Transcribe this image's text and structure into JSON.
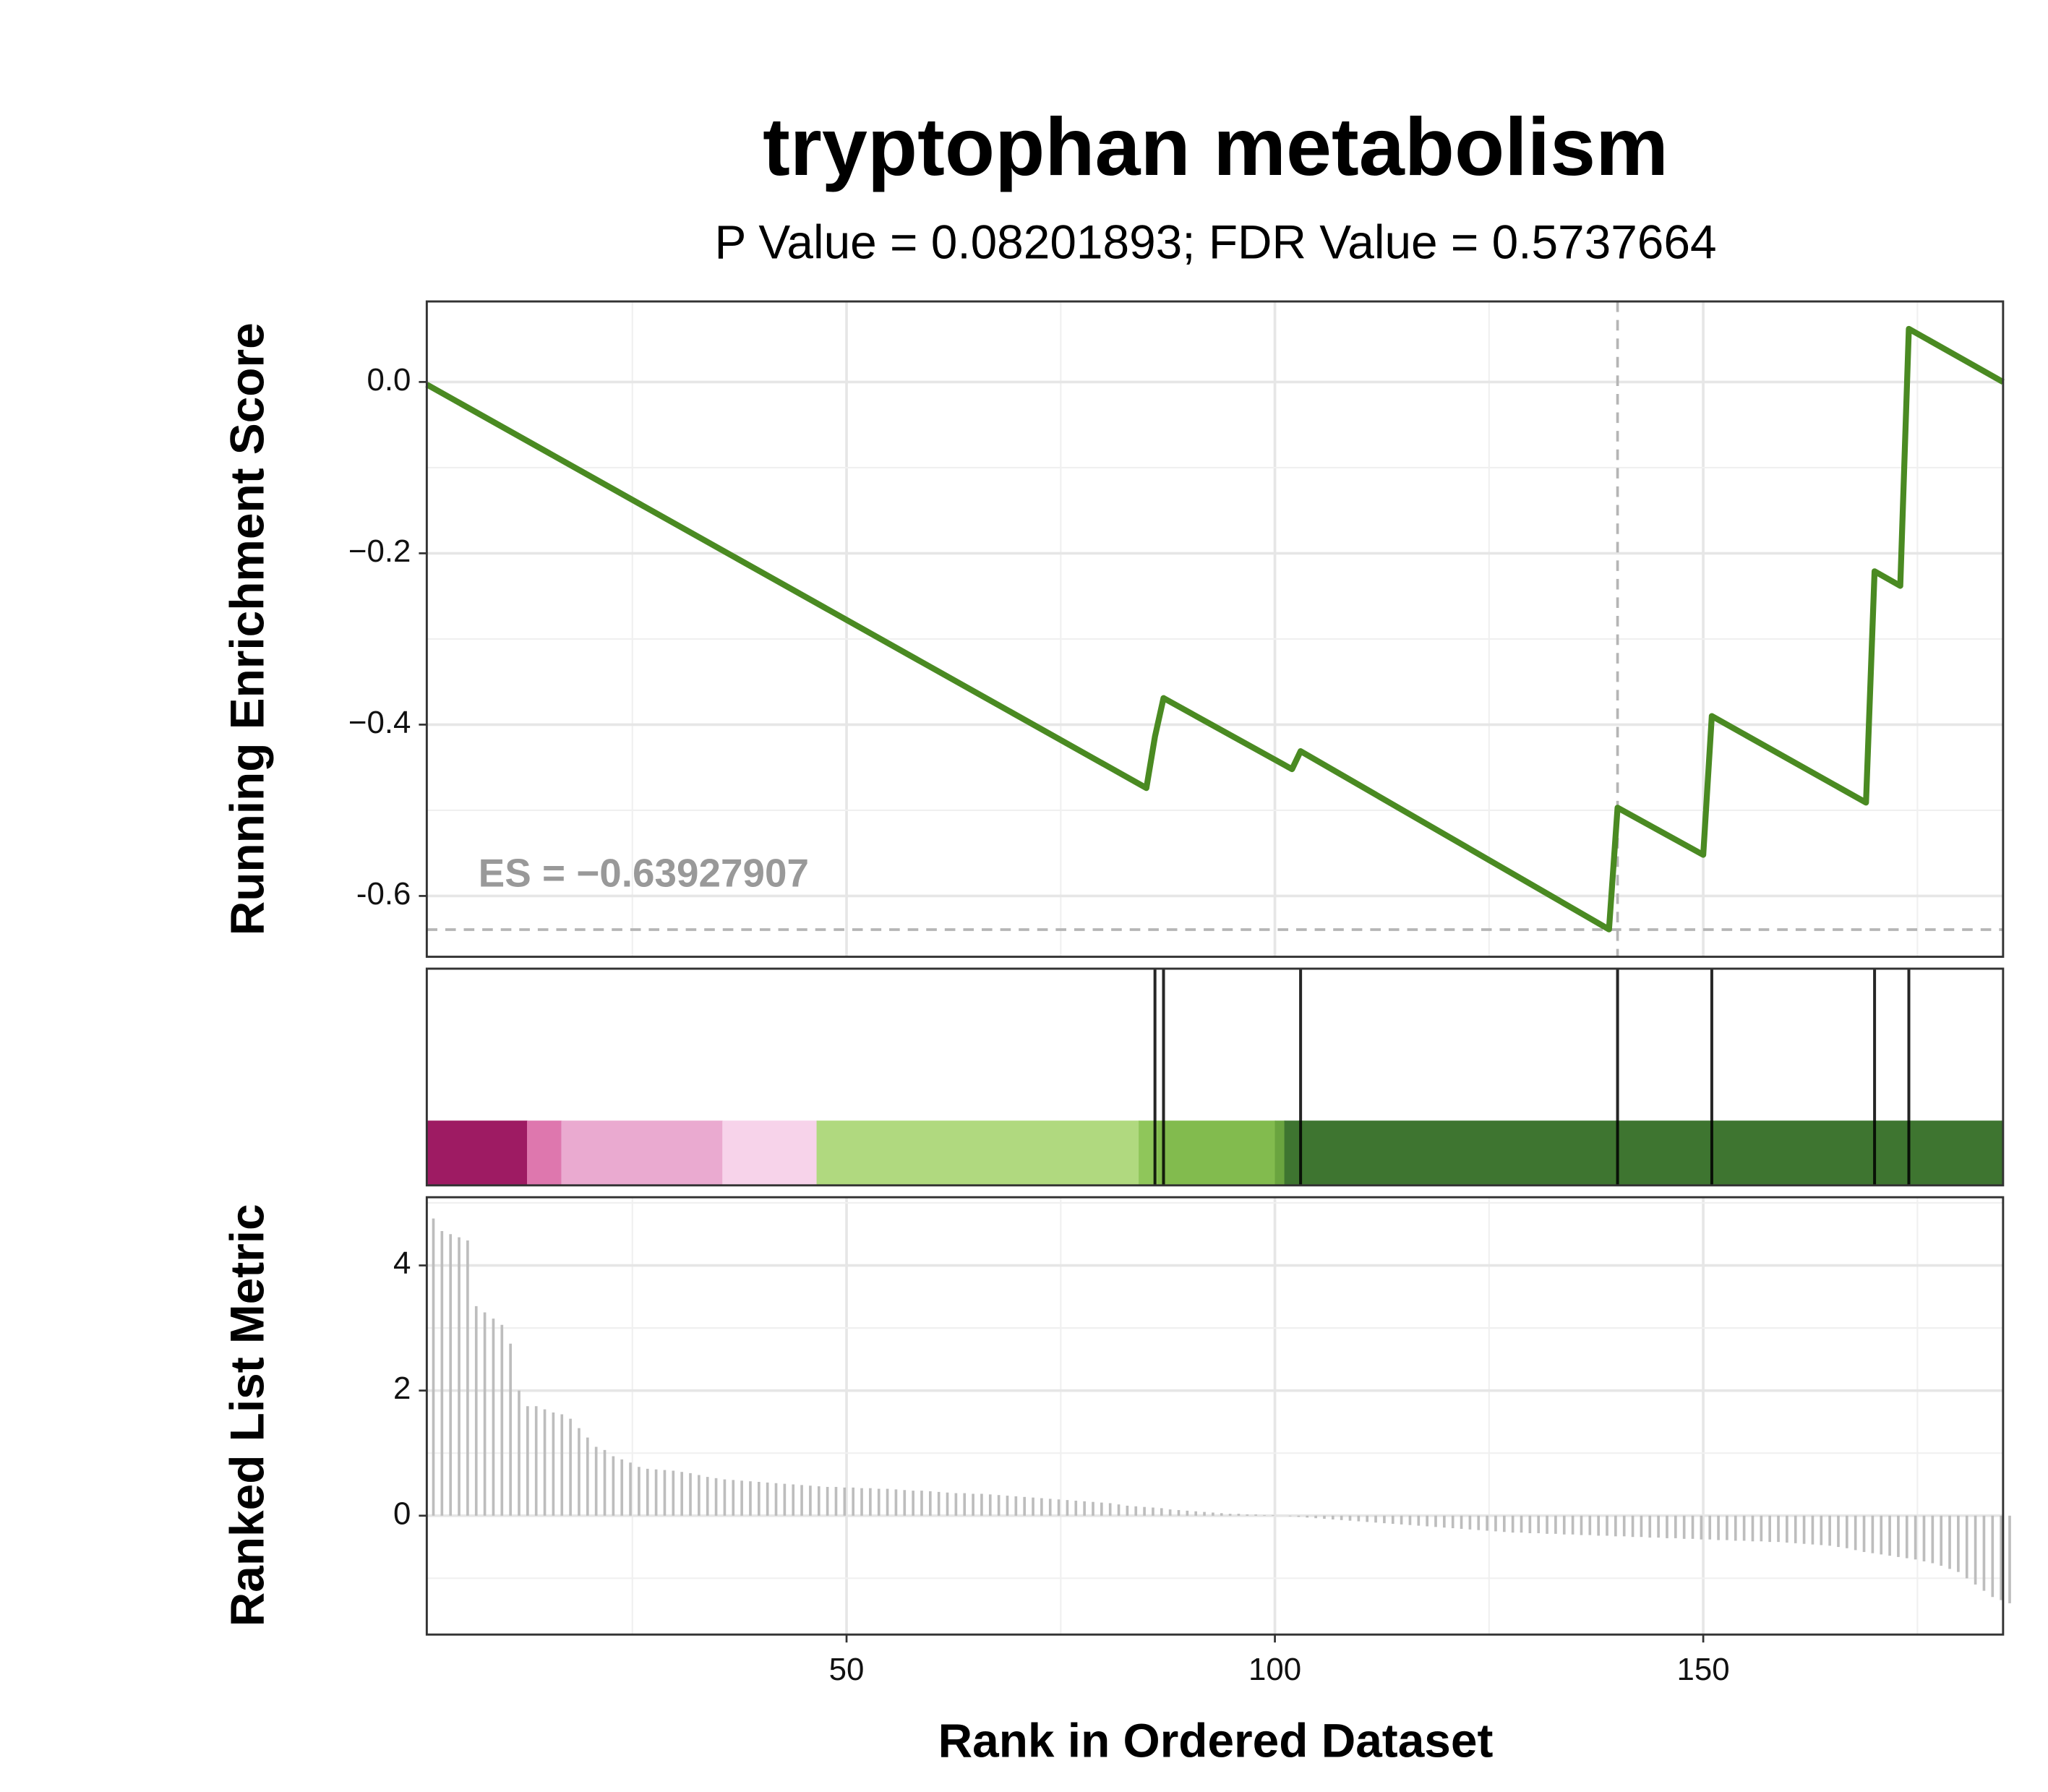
{
  "chart_data": {
    "type": "gsea",
    "title": "tryptophan metabolism",
    "subtitle": "P Value = 0.08201893; FDR Value = 0.5737664",
    "y_label": "Running Enrichment Score",
    "y2_label": "Ranked List Metric",
    "x_label": "Rank in Ordered Dataset",
    "annotation": "ES = −0.63927907",
    "es": -0.63927907,
    "es_rank": 140,
    "color": "#4a8a22",
    "xlim": [
      1,
      185
    ],
    "xticks": [
      50,
      100,
      150
    ],
    "ylim": [
      -0.671,
      0.094
    ],
    "yticks": [
      {
        "value": -0.6,
        "label": "-0.6"
      },
      {
        "value": -0.4,
        "label": "−0.4"
      },
      {
        "value": -0.2,
        "label": "−0.2"
      },
      {
        "value": 0,
        "label": "0.0"
      }
    ],
    "x": [
      1,
      85,
      86,
      87,
      102,
      103,
      139,
      140,
      150,
      151,
      169,
      170,
      173,
      174,
      185
    ],
    "values": [
      -0.003,
      -0.474,
      -0.414,
      -0.369,
      -0.452,
      -0.431,
      -0.639,
      -0.497,
      -0.552,
      -0.39,
      -0.491,
      -0.221,
      -0.238,
      0.062,
      0.0
    ],
    "hits": [
      86,
      87,
      103,
      140,
      151,
      170,
      174
    ],
    "band": {
      "breaks": [
        1,
        12.7,
        16.7,
        35.5,
        46.5,
        84.1,
        86.3,
        100,
        101.1,
        185
      ],
      "colors": [
        "#9e1b63",
        "#de77ae",
        "#eaaad0",
        "#f7d3ea",
        "#b0d97f",
        "#8fc65a",
        "#82bb4e",
        "#6aa43f",
        "#3e7530"
      ]
    },
    "metric": {
      "color": "#bdbdbd",
      "ylim": [
        -1.9,
        5.09
      ],
      "yticks": [
        0,
        2,
        4
      ],
      "values": [
        4.75,
        4.55,
        4.5,
        4.45,
        4.4,
        3.35,
        3.25,
        3.15,
        3.05,
        2.75,
        2.0,
        1.75,
        1.75,
        1.7,
        1.65,
        1.62,
        1.55,
        1.4,
        1.25,
        1.1,
        1.05,
        0.95,
        0.9,
        0.85,
        0.78,
        0.75,
        0.74,
        0.73,
        0.72,
        0.7,
        0.68,
        0.65,
        0.62,
        0.6,
        0.58,
        0.57,
        0.56,
        0.55,
        0.54,
        0.53,
        0.52,
        0.51,
        0.5,
        0.49,
        0.48,
        0.47,
        0.46,
        0.46,
        0.45,
        0.45,
        0.44,
        0.44,
        0.43,
        0.43,
        0.42,
        0.41,
        0.4,
        0.4,
        0.39,
        0.38,
        0.37,
        0.36,
        0.36,
        0.35,
        0.35,
        0.34,
        0.33,
        0.32,
        0.31,
        0.3,
        0.29,
        0.28,
        0.27,
        0.26,
        0.25,
        0.24,
        0.23,
        0.22,
        0.21,
        0.2,
        0.18,
        0.16,
        0.15,
        0.14,
        0.13,
        0.12,
        0.1,
        0.09,
        0.08,
        0.07,
        0.06,
        0.05,
        0.04,
        0.03,
        0.03,
        0.02,
        0.02,
        0.01,
        0.01,
        0,
        -0.01,
        -0.02,
        -0.03,
        -0.04,
        -0.05,
        -0.06,
        -0.07,
        -0.08,
        -0.09,
        -0.1,
        -0.11,
        -0.12,
        -0.13,
        -0.14,
        -0.15,
        -0.16,
        -0.17,
        -0.18,
        -0.19,
        -0.2,
        -0.21,
        -0.22,
        -0.23,
        -0.24,
        -0.25,
        -0.26,
        -0.27,
        -0.27,
        -0.28,
        -0.28,
        -0.29,
        -0.29,
        -0.3,
        -0.3,
        -0.31,
        -0.31,
        -0.32,
        -0.32,
        -0.33,
        -0.33,
        -0.34,
        -0.34,
        -0.35,
        -0.35,
        -0.36,
        -0.36,
        -0.37,
        -0.37,
        -0.38,
        -0.38,
        -0.39,
        -0.39,
        -0.4,
        -0.4,
        -0.41,
        -0.41,
        -0.42,
        -0.42,
        -0.43,
        -0.44,
        -0.45,
        -0.46,
        -0.47,
        -0.48,
        -0.5,
        -0.52,
        -0.55,
        -0.58,
        -0.6,
        -0.62,
        -0.64,
        -0.66,
        -0.68,
        -0.7,
        -0.73,
        -0.76,
        -0.8,
        -0.85,
        -0.9,
        -1.0,
        -1.1,
        -1.2,
        -1.3,
        -1.35,
        -1.4
      ]
    }
  }
}
